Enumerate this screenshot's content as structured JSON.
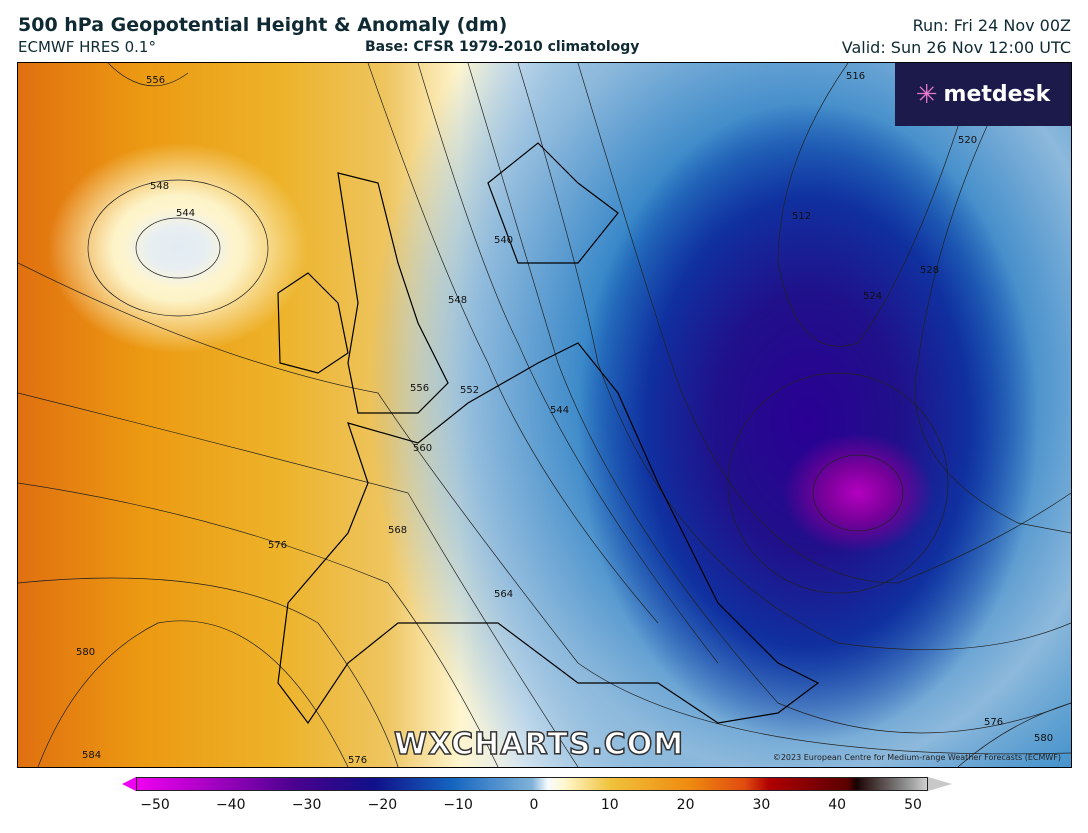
{
  "header": {
    "title": "500 hPa Geopotential Height & Anomaly (dm)",
    "model": "ECMWF HRES 0.1°",
    "base": "Base: CFSR 1979-2010 climatology",
    "run": "Run: Fri 24 Nov 00Z",
    "valid": "Valid: Sun 26 Nov 12:00 UTC"
  },
  "logo": {
    "text": "metdesk"
  },
  "watermark": "WXCHARTS.COM",
  "credit": "©2023 European Centre for Medium-range Weather Forecasts (ECMWF)",
  "contour_labels": [
    "556",
    "548",
    "544",
    "540",
    "548",
    "556",
    "552",
    "544",
    "560",
    "568",
    "576",
    "564",
    "580",
    "584",
    "576",
    "576",
    "580",
    "516",
    "520",
    "528",
    "524",
    "512"
  ],
  "colorbar": {
    "ticks": [
      "−50",
      "−40",
      "−30",
      "−20",
      "−10",
      "0",
      "10",
      "20",
      "30",
      "40",
      "50"
    ],
    "min": -50,
    "max": 50
  }
}
